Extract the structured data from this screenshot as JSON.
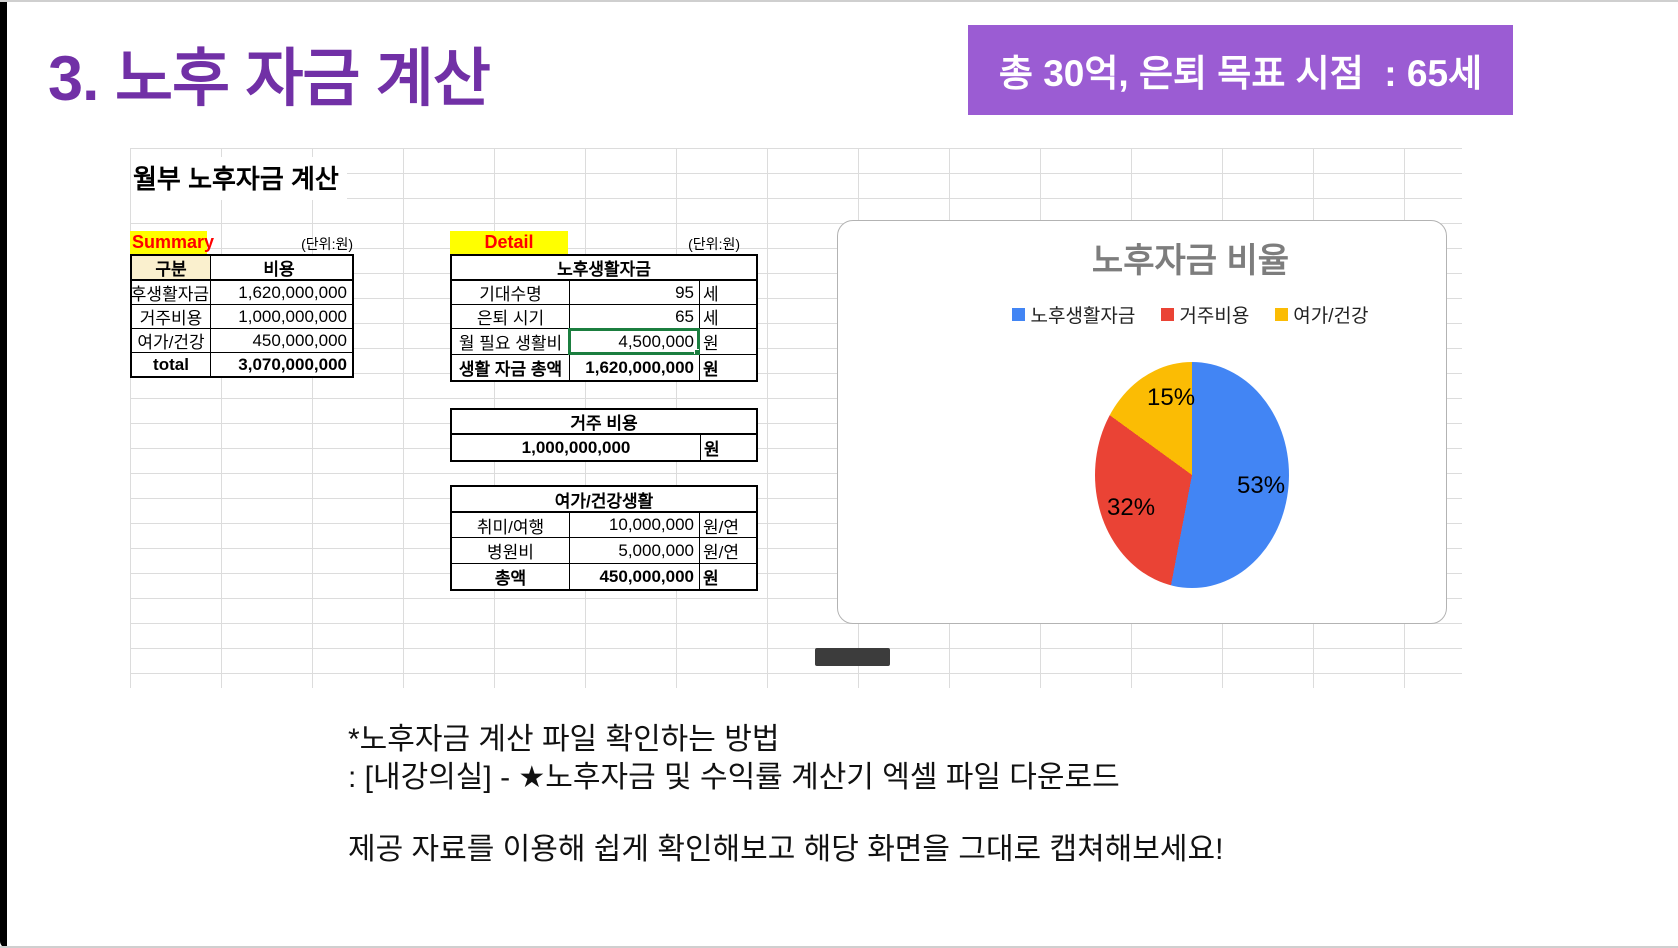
{
  "page": {
    "title": "3. 노후 자금 계산",
    "badge": "총 30억, 은퇴 목표 시점  : 65세",
    "sheet_title": "월부 노후자금 계산"
  },
  "summary": {
    "label": "Summary",
    "unit_note": "(단위:원)",
    "headers": {
      "col1": "구분",
      "col2": "비용"
    },
    "rows": [
      {
        "label": "노후생활자금",
        "value": "1,620,000,000"
      },
      {
        "label": "거주비용",
        "value": "1,000,000,000"
      },
      {
        "label": "여가/건강",
        "value": "450,000,000"
      },
      {
        "label": "total",
        "value": "3,070,000,000"
      }
    ]
  },
  "detail": {
    "label": "Detail",
    "unit_note": "(단위:원)",
    "table1": {
      "title": "노후생활자금",
      "rows": [
        {
          "label": "기대수명",
          "value": "95",
          "unit": "세"
        },
        {
          "label": "은퇴 시기",
          "value": "65",
          "unit": "세"
        },
        {
          "label": "월 필요 생활비",
          "value": "4,500,000",
          "unit": "원"
        },
        {
          "label": "생활 자금 총액",
          "value": "1,620,000,000",
          "unit": "원"
        }
      ]
    },
    "table2": {
      "title": "거주 비용",
      "rows": [
        {
          "value": "1,000,000,000",
          "unit": "원"
        }
      ]
    },
    "table3": {
      "title": "여가/건강생활",
      "rows": [
        {
          "label": "취미/여행",
          "value": "10,000,000",
          "unit": "원/연"
        },
        {
          "label": "병원비",
          "value": "5,000,000",
          "unit": "원/연"
        },
        {
          "label": "총액",
          "value": "450,000,000",
          "unit": "원"
        }
      ]
    }
  },
  "chart_data": {
    "type": "pie",
    "title": "노후자금 비율",
    "categories": [
      "노후생활자금",
      "거주비용",
      "여가/건강"
    ],
    "values": [
      53,
      32,
      15
    ],
    "unit": "%",
    "labels": [
      "53%",
      "32%",
      "15%"
    ],
    "colors": [
      "#4285F4",
      "#EA4335",
      "#FBBC04"
    ],
    "legend_position": "top",
    "start_angle": "12-o-clock-clockwise"
  },
  "notes": {
    "line1": "*노후자금 계산 파일 확인하는 방법",
    "line2": ": [내강의실] - ★노후자금 및 수익률 계산기 엑셀 파일 다운로드",
    "line3": "제공 자료를 이용해 쉽게 확인해보고 해당 화면을 그대로 캡쳐해보세요!"
  },
  "colors": {
    "title_purple": "#7130a6",
    "badge_purple": "#9b5cd3",
    "tag_background": "#ffff00",
    "tag_text": "#ff0000",
    "header_beige": "#faf0ce",
    "selection_green": "#1b7e3f",
    "chart_title_gray": "#7d7d7d",
    "gridline": "#dcdcdc"
  }
}
